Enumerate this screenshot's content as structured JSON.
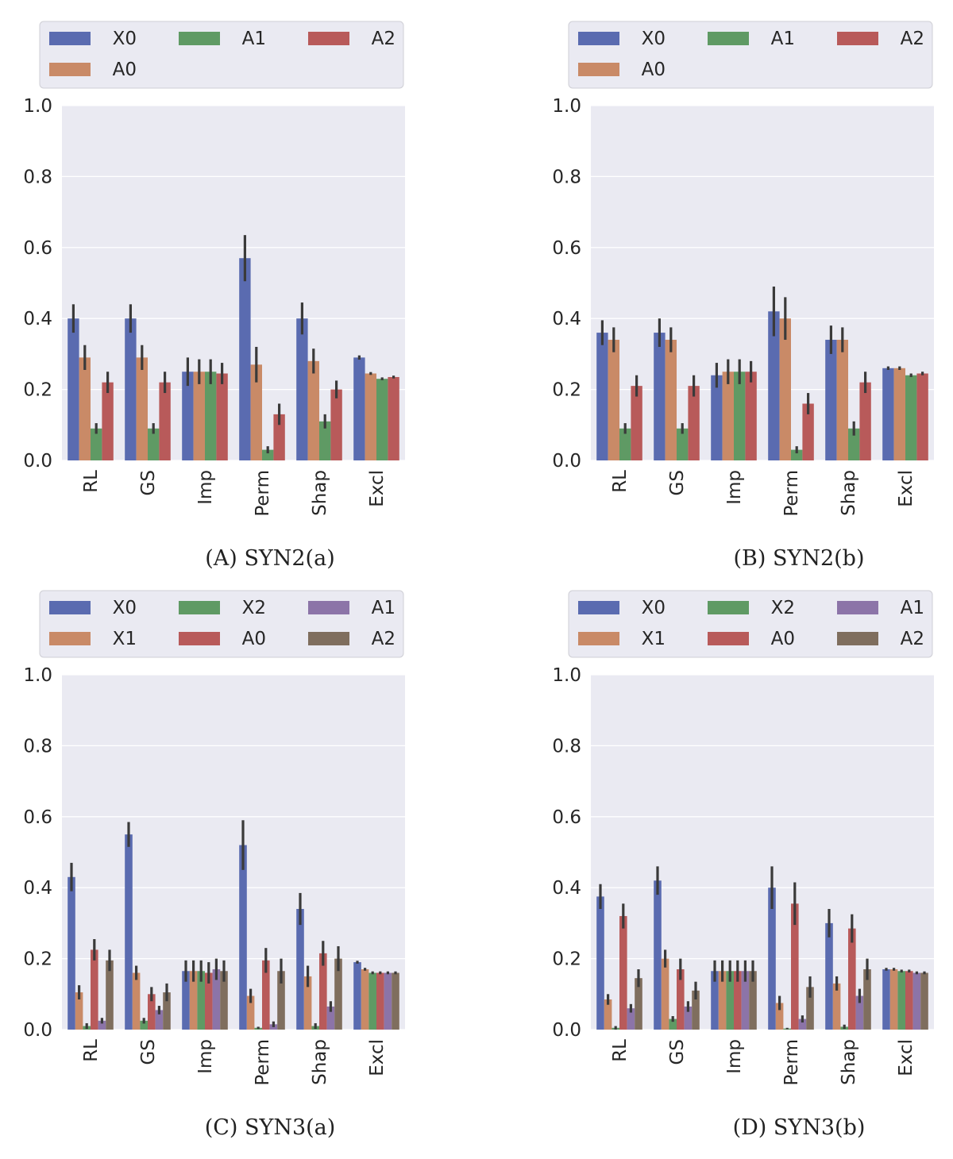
{
  "chart_data": [
    {
      "type": "bar",
      "caption_letter": "(A)",
      "caption_text": "SYN2(a)",
      "categories": [
        "RL",
        "GS",
        "Imp",
        "Perm",
        "Shap",
        "Excl"
      ],
      "ylim": [
        0,
        1.0
      ],
      "yticks": [
        "0.0",
        "0.2",
        "0.4",
        "0.6",
        "0.8",
        "1.0"
      ],
      "legend_order": [
        "X0",
        "A1",
        "A2",
        "A0"
      ],
      "series": [
        {
          "name": "X0",
          "color": "#5a6bb0",
          "values": [
            0.4,
            0.4,
            0.25,
            0.57,
            0.4,
            0.29
          ],
          "err": [
            0.04,
            0.04,
            0.04,
            0.065,
            0.045,
            0.006
          ]
        },
        {
          "name": "A0",
          "color": "#c98a67",
          "values": [
            0.29,
            0.29,
            0.25,
            0.27,
            0.28,
            0.245
          ],
          "err": [
            0.035,
            0.035,
            0.035,
            0.05,
            0.035,
            0.004
          ]
        },
        {
          "name": "A1",
          "color": "#5f9a64",
          "values": [
            0.09,
            0.09,
            0.25,
            0.03,
            0.11,
            0.23
          ],
          "err": [
            0.015,
            0.015,
            0.035,
            0.01,
            0.02,
            0.004
          ]
        },
        {
          "name": "A2",
          "color": "#b85a5a",
          "values": [
            0.22,
            0.22,
            0.245,
            0.13,
            0.2,
            0.235
          ],
          "err": [
            0.03,
            0.03,
            0.03,
            0.03,
            0.025,
            0.004
          ]
        }
      ]
    },
    {
      "type": "bar",
      "caption_letter": "(B)",
      "caption_text": "SYN2(b)",
      "categories": [
        "RL",
        "GS",
        "Imp",
        "Perm",
        "Shap",
        "Excl"
      ],
      "ylim": [
        0,
        1.0
      ],
      "yticks": [
        "0.0",
        "0.2",
        "0.4",
        "0.6",
        "0.8",
        "1.0"
      ],
      "legend_order": [
        "X0",
        "A1",
        "A2",
        "A0"
      ],
      "series": [
        {
          "name": "X0",
          "color": "#5a6bb0",
          "values": [
            0.36,
            0.36,
            0.24,
            0.42,
            0.34,
            0.26
          ],
          "err": [
            0.035,
            0.04,
            0.035,
            0.07,
            0.04,
            0.005
          ]
        },
        {
          "name": "A0",
          "color": "#c98a67",
          "values": [
            0.34,
            0.34,
            0.25,
            0.4,
            0.34,
            0.26
          ],
          "err": [
            0.035,
            0.035,
            0.035,
            0.06,
            0.035,
            0.005
          ]
        },
        {
          "name": "A1",
          "color": "#5f9a64",
          "values": [
            0.09,
            0.09,
            0.25,
            0.03,
            0.09,
            0.24
          ],
          "err": [
            0.015,
            0.015,
            0.035,
            0.01,
            0.02,
            0.005
          ]
        },
        {
          "name": "A2",
          "color": "#b85a5a",
          "values": [
            0.21,
            0.21,
            0.25,
            0.16,
            0.22,
            0.245
          ],
          "err": [
            0.03,
            0.03,
            0.03,
            0.03,
            0.03,
            0.005
          ]
        }
      ]
    },
    {
      "type": "bar",
      "caption_letter": "(C)",
      "caption_text": "SYN3(a)",
      "categories": [
        "RL",
        "GS",
        "Imp",
        "Perm",
        "Shap",
        "Excl"
      ],
      "ylim": [
        0,
        1.0
      ],
      "yticks": [
        "0.0",
        "0.2",
        "0.4",
        "0.6",
        "0.8",
        "1.0"
      ],
      "legend_order": [
        "X0",
        "X2",
        "A1",
        "X1",
        "A0",
        "A2"
      ],
      "series": [
        {
          "name": "X0",
          "color": "#5a6bb0",
          "values": [
            0.43,
            0.55,
            0.165,
            0.52,
            0.34,
            0.19
          ],
          "err": [
            0.04,
            0.035,
            0.03,
            0.07,
            0.045,
            0.004
          ]
        },
        {
          "name": "X1",
          "color": "#c98a67",
          "values": [
            0.105,
            0.16,
            0.165,
            0.095,
            0.15,
            0.17
          ],
          "err": [
            0.02,
            0.02,
            0.03,
            0.02,
            0.03,
            0.004
          ]
        },
        {
          "name": "X2",
          "color": "#5f9a64",
          "values": [
            0.01,
            0.025,
            0.165,
            0.005,
            0.01,
            0.16
          ],
          "err": [
            0.008,
            0.008,
            0.03,
            0.003,
            0.008,
            0.004
          ]
        },
        {
          "name": "A0",
          "color": "#b85a5a",
          "values": [
            0.225,
            0.1,
            0.16,
            0.195,
            0.215,
            0.16
          ],
          "err": [
            0.03,
            0.02,
            0.03,
            0.035,
            0.035,
            0.004
          ]
        },
        {
          "name": "A1",
          "color": "#8c74a8",
          "values": [
            0.025,
            0.055,
            0.17,
            0.015,
            0.065,
            0.16
          ],
          "err": [
            0.008,
            0.012,
            0.03,
            0.008,
            0.015,
            0.004
          ]
        },
        {
          "name": "A2",
          "color": "#7f6e5e",
          "values": [
            0.195,
            0.105,
            0.165,
            0.165,
            0.2,
            0.16
          ],
          "err": [
            0.03,
            0.025,
            0.03,
            0.035,
            0.035,
            0.004
          ]
        }
      ]
    },
    {
      "type": "bar",
      "caption_letter": "(D)",
      "caption_text": "SYN3(b)",
      "categories": [
        "RL",
        "GS",
        "Imp",
        "Perm",
        "Shap",
        "Excl"
      ],
      "ylim": [
        0,
        1.0
      ],
      "yticks": [
        "0.0",
        "0.2",
        "0.4",
        "0.6",
        "0.8",
        "1.0"
      ],
      "legend_order": [
        "X0",
        "X2",
        "A1",
        "X1",
        "A0",
        "A2"
      ],
      "series": [
        {
          "name": "X0",
          "color": "#5a6bb0",
          "values": [
            0.375,
            0.42,
            0.165,
            0.4,
            0.3,
            0.17
          ],
          "err": [
            0.035,
            0.04,
            0.03,
            0.06,
            0.04,
            0.004
          ]
        },
        {
          "name": "X1",
          "color": "#c98a67",
          "values": [
            0.085,
            0.2,
            0.165,
            0.075,
            0.13,
            0.17
          ],
          "err": [
            0.015,
            0.025,
            0.03,
            0.02,
            0.02,
            0.004
          ]
        },
        {
          "name": "X2",
          "color": "#5f9a64",
          "values": [
            0.005,
            0.03,
            0.165,
            0.003,
            0.008,
            0.165
          ],
          "err": [
            0.005,
            0.008,
            0.03,
            0.002,
            0.006,
            0.004
          ]
        },
        {
          "name": "A0",
          "color": "#b85a5a",
          "values": [
            0.32,
            0.17,
            0.165,
            0.355,
            0.285,
            0.165
          ],
          "err": [
            0.035,
            0.03,
            0.03,
            0.06,
            0.04,
            0.004
          ]
        },
        {
          "name": "A1",
          "color": "#8c74a8",
          "values": [
            0.06,
            0.065,
            0.165,
            0.03,
            0.095,
            0.16
          ],
          "err": [
            0.012,
            0.015,
            0.03,
            0.01,
            0.02,
            0.004
          ]
        },
        {
          "name": "A2",
          "color": "#7f6e5e",
          "values": [
            0.145,
            0.11,
            0.165,
            0.12,
            0.17,
            0.16
          ],
          "err": [
            0.025,
            0.025,
            0.03,
            0.03,
            0.03,
            0.004
          ]
        }
      ]
    }
  ]
}
